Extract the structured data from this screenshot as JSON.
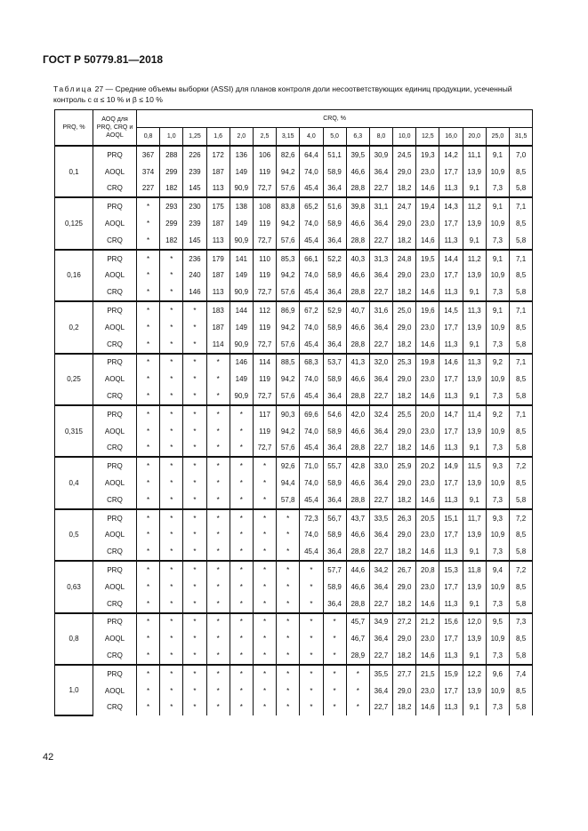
{
  "header": {
    "doc_title": "ГОСТ Р 50779.81—2018"
  },
  "caption": {
    "label": "Таблица",
    "text": " 27 — Средние объемы выборки (ASSI) для планов контроля доли несоответствующих единиц продукции, усеченный контроль с α ≤ 10 % и β ≤ 10 %"
  },
  "table": {
    "col1_header": "PRQ, %",
    "col2_header": "AOQ для PRQ, CRQ и AOQL",
    "group_header": "CRQ, %",
    "crq_values": [
      "0,8",
      "1,0",
      "1,25",
      "1,6",
      "2,0",
      "2,5",
      "3,15",
      "4,0",
      "5,0",
      "6,3",
      "8,0",
      "10,0",
      "12,5",
      "16,0",
      "20,0",
      "25,0",
      "31,5"
    ],
    "groups": [
      {
        "prq": "0,1",
        "rows": [
          {
            "label": "PRQ",
            "values": [
              "367",
              "288",
              "226",
              "172",
              "136",
              "106",
              "82,6",
              "64,4",
              "51,1",
              "39,5",
              "30,9",
              "24,5",
              "19,3",
              "14,2",
              "11,1",
              "9,1",
              "7,0"
            ]
          },
          {
            "label": "AOQL",
            "values": [
              "374",
              "299",
              "239",
              "187",
              "149",
              "119",
              "94,2",
              "74,0",
              "58,9",
              "46,6",
              "36,4",
              "29,0",
              "23,0",
              "17,7",
              "13,9",
              "10,9",
              "8,5"
            ]
          },
          {
            "label": "CRQ",
            "values": [
              "227",
              "182",
              "145",
              "113",
              "90,9",
              "72,7",
              "57,6",
              "45,4",
              "36,4",
              "28,8",
              "22,7",
              "18,2",
              "14,6",
              "11,3",
              "9,1",
              "7,3",
              "5,8"
            ]
          }
        ]
      },
      {
        "prq": "0,125",
        "rows": [
          {
            "label": "PRQ",
            "values": [
              "*",
              "293",
              "230",
              "175",
              "138",
              "108",
              "83,8",
              "65,2",
              "51,6",
              "39,8",
              "31,1",
              "24,7",
              "19,4",
              "14,3",
              "11,2",
              "9,1",
              "7,1"
            ]
          },
          {
            "label": "AOQL",
            "values": [
              "*",
              "299",
              "239",
              "187",
              "149",
              "119",
              "94,2",
              "74,0",
              "58,9",
              "46,6",
              "36,4",
              "29,0",
              "23,0",
              "17,7",
              "13,9",
              "10,9",
              "8,5"
            ]
          },
          {
            "label": "CRQ",
            "values": [
              "*",
              "182",
              "145",
              "113",
              "90,9",
              "72,7",
              "57,6",
              "45,4",
              "36,4",
              "28,8",
              "22,7",
              "18,2",
              "14,6",
              "11,3",
              "9,1",
              "7,3",
              "5,8"
            ]
          }
        ]
      },
      {
        "prq": "0,16",
        "rows": [
          {
            "label": "PRQ",
            "values": [
              "*",
              "*",
              "236",
              "179",
              "141",
              "110",
              "85,3",
              "66,1",
              "52,2",
              "40,3",
              "31,3",
              "24,8",
              "19,5",
              "14,4",
              "11,2",
              "9,1",
              "7,1"
            ]
          },
          {
            "label": "AOQL",
            "values": [
              "*",
              "*",
              "240",
              "187",
              "149",
              "119",
              "94,2",
              "74,0",
              "58,9",
              "46,6",
              "36,4",
              "29,0",
              "23,0",
              "17,7",
              "13,9",
              "10,9",
              "8,5"
            ]
          },
          {
            "label": "CRQ",
            "values": [
              "*",
              "*",
              "146",
              "113",
              "90,9",
              "72,7",
              "57,6",
              "45,4",
              "36,4",
              "28,8",
              "22,7",
              "18,2",
              "14,6",
              "11,3",
              "9,1",
              "7,3",
              "5,8"
            ]
          }
        ]
      },
      {
        "prq": "0,2",
        "rows": [
          {
            "label": "PRQ",
            "values": [
              "*",
              "*",
              "*",
              "183",
              "144",
              "112",
              "86,9",
              "67,2",
              "52,9",
              "40,7",
              "31,6",
              "25,0",
              "19,6",
              "14,5",
              "11,3",
              "9,1",
              "7,1"
            ]
          },
          {
            "label": "AOQL",
            "values": [
              "*",
              "*",
              "*",
              "187",
              "149",
              "119",
              "94,2",
              "74,0",
              "58,9",
              "46,6",
              "36,4",
              "29,0",
              "23,0",
              "17,7",
              "13,9",
              "10,9",
              "8,5"
            ]
          },
          {
            "label": "CRQ",
            "values": [
              "*",
              "*",
              "*",
              "114",
              "90,9",
              "72,7",
              "57,6",
              "45,4",
              "36,4",
              "28,8",
              "22,7",
              "18,2",
              "14,6",
              "11,3",
              "9,1",
              "7,3",
              "5,8"
            ]
          }
        ]
      },
      {
        "prq": "0,25",
        "rows": [
          {
            "label": "PRQ",
            "values": [
              "*",
              "*",
              "*",
              "*",
              "146",
              "114",
              "88,5",
              "68,3",
              "53,7",
              "41,3",
              "32,0",
              "25,3",
              "19,8",
              "14,6",
              "11,3",
              "9,2",
              "7,1"
            ]
          },
          {
            "label": "AOQL",
            "values": [
              "*",
              "*",
              "*",
              "*",
              "149",
              "119",
              "94,2",
              "74,0",
              "58,9",
              "46,6",
              "36,4",
              "29,0",
              "23,0",
              "17,7",
              "13,9",
              "10,9",
              "8,5"
            ]
          },
          {
            "label": "CRQ",
            "values": [
              "*",
              "*",
              "*",
              "*",
              "90,9",
              "72,7",
              "57,6",
              "45,4",
              "36,4",
              "28,8",
              "22,7",
              "18,2",
              "14,6",
              "11,3",
              "9,1",
              "7,3",
              "5,8"
            ]
          }
        ]
      },
      {
        "prq": "0,315",
        "rows": [
          {
            "label": "PRQ",
            "values": [
              "*",
              "*",
              "*",
              "*",
              "*",
              "117",
              "90,3",
              "69,6",
              "54,6",
              "42,0",
              "32,4",
              "25,5",
              "20,0",
              "14,7",
              "11,4",
              "9,2",
              "7,1"
            ]
          },
          {
            "label": "AOQL",
            "values": [
              "*",
              "*",
              "*",
              "*",
              "*",
              "119",
              "94,2",
              "74,0",
              "58,9",
              "46,6",
              "36,4",
              "29,0",
              "23,0",
              "17,7",
              "13,9",
              "10,9",
              "8,5"
            ]
          },
          {
            "label": "CRQ",
            "values": [
              "*",
              "*",
              "*",
              "*",
              "*",
              "72,7",
              "57,6",
              "45,4",
              "36,4",
              "28,8",
              "22,7",
              "18,2",
              "14,6",
              "11,3",
              "9,1",
              "7,3",
              "5,8"
            ]
          }
        ]
      },
      {
        "prq": "0,4",
        "rows": [
          {
            "label": "PRQ",
            "values": [
              "*",
              "*",
              "*",
              "*",
              "*",
              "*",
              "92,6",
              "71,0",
              "55,7",
              "42,8",
              "33,0",
              "25,9",
              "20,2",
              "14,9",
              "11,5",
              "9,3",
              "7,2"
            ]
          },
          {
            "label": "AOQL",
            "values": [
              "*",
              "*",
              "*",
              "*",
              "*",
              "*",
              "94,4",
              "74,0",
              "58,9",
              "46,6",
              "36,4",
              "29,0",
              "23,0",
              "17,7",
              "13,9",
              "10,9",
              "8,5"
            ]
          },
          {
            "label": "CRQ",
            "values": [
              "*",
              "*",
              "*",
              "*",
              "*",
              "*",
              "57,8",
              "45,4",
              "36,4",
              "28,8",
              "22,7",
              "18,2",
              "14,6",
              "11,3",
              "9,1",
              "7,3",
              "5,8"
            ]
          }
        ]
      },
      {
        "prq": "0,5",
        "rows": [
          {
            "label": "PRQ",
            "values": [
              "*",
              "*",
              "*",
              "*",
              "*",
              "*",
              "*",
              "72,3",
              "56,7",
              "43,7",
              "33,5",
              "26,3",
              "20,5",
              "15,1",
              "11,7",
              "9,3",
              "7,2"
            ]
          },
          {
            "label": "AOQL",
            "values": [
              "*",
              "*",
              "*",
              "*",
              "*",
              "*",
              "*",
              "74,0",
              "58,9",
              "46,6",
              "36,4",
              "29,0",
              "23,0",
              "17,7",
              "13,9",
              "10,9",
              "8,5"
            ]
          },
          {
            "label": "CRQ",
            "values": [
              "*",
              "*",
              "*",
              "*",
              "*",
              "*",
              "*",
              "45,4",
              "36,4",
              "28,8",
              "22,7",
              "18,2",
              "14,6",
              "11,3",
              "9,1",
              "7,3",
              "5,8"
            ]
          }
        ]
      },
      {
        "prq": "0,63",
        "rows": [
          {
            "label": "PRQ",
            "values": [
              "*",
              "*",
              "*",
              "*",
              "*",
              "*",
              "*",
              "*",
              "57,7",
              "44,6",
              "34,2",
              "26,7",
              "20,8",
              "15,3",
              "11,8",
              "9,4",
              "7,2"
            ]
          },
          {
            "label": "AOQL",
            "values": [
              "*",
              "*",
              "*",
              "*",
              "*",
              "*",
              "*",
              "*",
              "58,9",
              "46,6",
              "36,4",
              "29,0",
              "23,0",
              "17,7",
              "13,9",
              "10,9",
              "8,5"
            ]
          },
          {
            "label": "CRQ",
            "values": [
              "*",
              "*",
              "*",
              "*",
              "*",
              "*",
              "*",
              "*",
              "36,4",
              "28,8",
              "22,7",
              "18,2",
              "14,6",
              "11,3",
              "9,1",
              "7,3",
              "5,8"
            ]
          }
        ]
      },
      {
        "prq": "0,8",
        "rows": [
          {
            "label": "PRQ",
            "values": [
              "*",
              "*",
              "*",
              "*",
              "*",
              "*",
              "*",
              "*",
              "*",
              "45,7",
              "34,9",
              "27,2",
              "21,2",
              "15,6",
              "12,0",
              "9,5",
              "7,3"
            ]
          },
          {
            "label": "AOQL",
            "values": [
              "*",
              "*",
              "*",
              "*",
              "*",
              "*",
              "*",
              "*",
              "*",
              "46,7",
              "36,4",
              "29,0",
              "23,0",
              "17,7",
              "13,9",
              "10,9",
              "8,5"
            ]
          },
          {
            "label": "CRQ",
            "values": [
              "*",
              "*",
              "*",
              "*",
              "*",
              "*",
              "*",
              "*",
              "*",
              "28,9",
              "22,7",
              "18,2",
              "14,6",
              "11,3",
              "9,1",
              "7,3",
              "5,8"
            ]
          }
        ]
      },
      {
        "prq": "1,0",
        "rows": [
          {
            "label": "PRQ",
            "values": [
              "*",
              "*",
              "*",
              "*",
              "*",
              "*",
              "*",
              "*",
              "*",
              "*",
              "35,5",
              "27,7",
              "21,5",
              "15,9",
              "12,2",
              "9,6",
              "7,4"
            ]
          },
          {
            "label": "AOQL",
            "values": [
              "*",
              "*",
              "*",
              "*",
              "*",
              "*",
              "*",
              "*",
              "*",
              "*",
              "36,4",
              "29,0",
              "23,0",
              "17,7",
              "13,9",
              "10,9",
              "8,5"
            ]
          },
          {
            "label": "CRQ",
            "values": [
              "*",
              "*",
              "*",
              "*",
              "*",
              "*",
              "*",
              "*",
              "*",
              "*",
              "22,7",
              "18,2",
              "14,6",
              "11,3",
              "9,1",
              "7,3",
              "5,8"
            ]
          }
        ]
      }
    ]
  },
  "footer": {
    "page_number": "42"
  }
}
